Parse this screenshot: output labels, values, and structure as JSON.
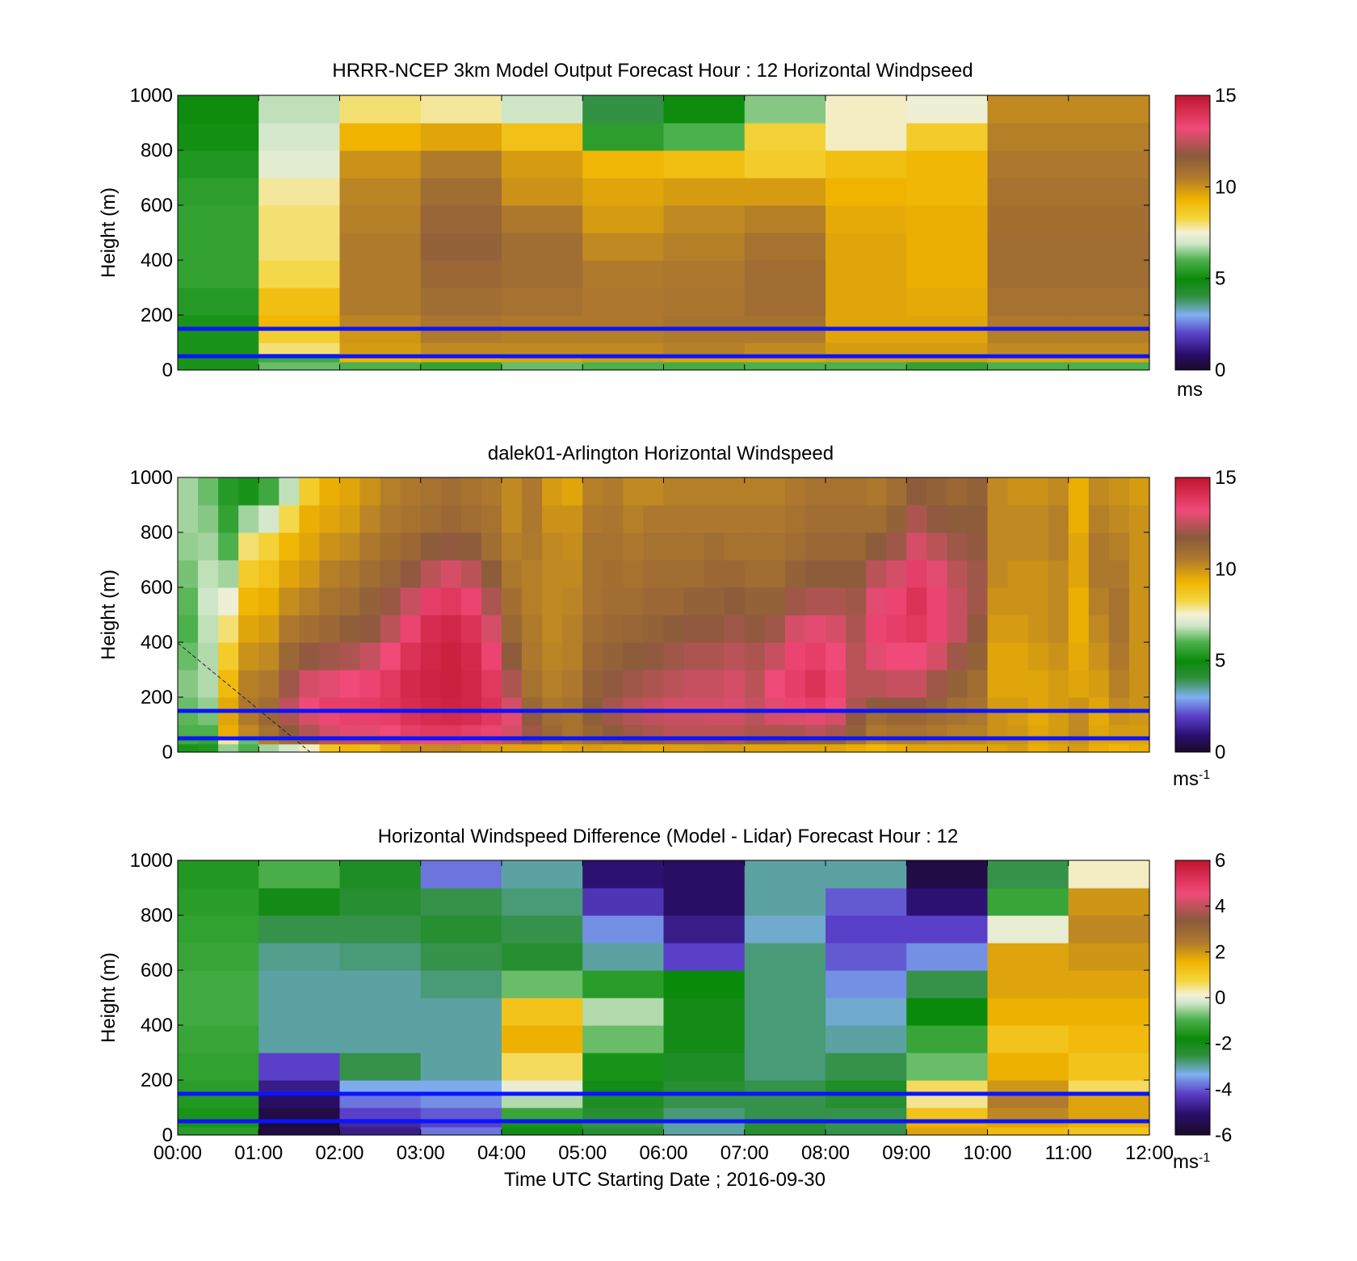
{
  "chart_data": [
    {
      "type": "heatmap",
      "title": "HRRR-NCEP 3km Model Output   Forecast Hour : 12 Horizontal Windpseed",
      "ylabel": "Height (m)",
      "xlabel": "",
      "ylim": [
        0,
        1000
      ],
      "yticks": [
        "0",
        "200",
        "400",
        "600",
        "800",
        "1000"
      ],
      "x_hours": [
        0,
        12
      ],
      "colorbar": {
        "ticks": [
          "0",
          "5",
          "10",
          "15"
        ],
        "range": [
          0,
          15
        ],
        "units": "ms",
        "units_sup": "",
        "colormap": "speed"
      },
      "reference_lines_m": [
        50,
        150
      ],
      "columns": 12,
      "height_levels_m": [
        30,
        60,
        100,
        150,
        200,
        300,
        400,
        500,
        600,
        700,
        800,
        900,
        1000
      ],
      "values": [
        [
          5.2,
          5.2,
          5.2,
          5.2,
          5.2,
          5.4,
          5.6,
          5.6,
          5.6,
          5.5,
          5.3,
          5.1,
          5.0
        ],
        [
          6.2,
          5.8,
          8.0,
          8.5,
          9.2,
          9.0,
          8.2,
          8.0,
          8.0,
          7.8,
          7.2,
          7.0,
          6.8
        ],
        [
          6.0,
          9.3,
          9.8,
          9.9,
          10.3,
          10.5,
          10.5,
          10.5,
          10.4,
          10.3,
          10.0,
          9.3,
          8.0
        ],
        [
          5.6,
          9.5,
          10.2,
          10.5,
          10.7,
          11.0,
          11.2,
          11.4,
          11.3,
          11.0,
          10.5,
          9.6,
          7.8
        ],
        [
          6.2,
          9.6,
          10.2,
          10.4,
          10.6,
          10.8,
          11.0,
          11.0,
          10.6,
          10.0,
          9.8,
          8.9,
          6.9
        ],
        [
          6.0,
          9.8,
          10.2,
          10.4,
          10.6,
          10.6,
          10.5,
          10.2,
          9.8,
          9.6,
          9.2,
          5.5,
          4.0
        ],
        [
          5.9,
          9.6,
          10.4,
          10.5,
          10.8,
          10.7,
          10.6,
          10.4,
          10.2,
          9.8,
          9.0,
          6.0,
          5.0
        ],
        [
          6.0,
          9.6,
          10.2,
          10.5,
          10.8,
          11.0,
          11.0,
          10.8,
          10.4,
          9.8,
          8.6,
          8.4,
          6.4
        ],
        [
          6.0,
          9.8,
          9.8,
          9.6,
          9.6,
          9.6,
          9.6,
          9.6,
          9.5,
          9.3,
          9.0,
          7.6,
          7.6
        ],
        [
          5.6,
          9.8,
          9.8,
          9.6,
          9.6,
          9.5,
          9.4,
          9.4,
          9.4,
          9.2,
          9.2,
          8.6,
          7.4
        ],
        [
          6.0,
          9.6,
          10.2,
          10.4,
          10.6,
          10.8,
          11.0,
          11.0,
          10.9,
          10.8,
          10.6,
          10.4,
          10.2
        ],
        [
          6.0,
          9.6,
          10.2,
          10.4,
          10.6,
          10.8,
          11.0,
          11.0,
          10.9,
          10.8,
          10.6,
          10.4,
          10.2
        ]
      ]
    },
    {
      "type": "heatmap",
      "title": "dalek01-Arlington  Horizontal Windspeed",
      "ylabel": "Height (m)",
      "xlabel": "",
      "ylim": [
        0,
        1000
      ],
      "yticks": [
        "0",
        "200",
        "400",
        "600",
        "800",
        "1000"
      ],
      "x_hours": [
        0,
        12
      ],
      "colorbar": {
        "ticks": [
          "0",
          "5",
          "10",
          "15"
        ],
        "range": [
          0,
          15
        ],
        "units": "ms",
        "units_sup": "-1",
        "colormap": "speed"
      },
      "reference_lines_m": [
        50,
        150
      ],
      "columns": 48,
      "height_levels_m": [
        30,
        60,
        100,
        150,
        200,
        300,
        400,
        500,
        600,
        700,
        800,
        900,
        1000
      ],
      "values": [
        [
          5.2,
          5.8,
          6.0,
          6.1,
          6.2,
          6.4,
          6.2,
          6.0,
          6.1,
          6.3,
          6.5,
          6.6,
          6.6
        ],
        [
          5.3,
          5.6,
          6.0,
          6.3,
          6.5,
          6.7,
          6.7,
          6.8,
          6.9,
          6.8,
          6.6,
          6.4,
          6.2
        ],
        [
          6.5,
          7.8,
          9.4,
          9.6,
          9.5,
          9.1,
          8.6,
          8.0,
          7.4,
          6.6,
          6.0,
          5.6,
          5.4
        ],
        [
          6.0,
          6.2,
          10.2,
          10.5,
          10.6,
          10.4,
          10.0,
          9.6,
          9.2,
          8.6,
          8.0,
          6.6,
          5.2
        ],
        [
          6.6,
          10.4,
          10.8,
          11.2,
          11.0,
          10.6,
          10.2,
          9.8,
          9.4,
          8.9,
          8.4,
          7.0,
          5.8
        ],
        [
          7.0,
          11.0,
          11.6,
          12.2,
          12.5,
          12.0,
          11.2,
          10.6,
          10.1,
          9.6,
          9.2,
          8.2,
          6.8
        ],
        [
          7.6,
          11.6,
          12.3,
          12.8,
          13.2,
          12.8,
          11.8,
          10.9,
          10.4,
          9.9,
          9.6,
          9.4,
          8.6
        ],
        [
          8.8,
          12.4,
          12.8,
          13.3,
          13.6,
          13.0,
          12.0,
          11.2,
          10.8,
          10.4,
          10.0,
          9.6,
          9.4
        ],
        [
          9.2,
          12.5,
          13.0,
          13.5,
          13.6,
          13.2,
          12.2,
          11.5,
          11.0,
          10.6,
          10.2,
          9.8,
          9.6
        ],
        [
          9.0,
          12.4,
          13.0,
          13.5,
          13.7,
          13.4,
          12.6,
          11.8,
          11.4,
          11.0,
          10.6,
          10.3,
          10.0
        ],
        [
          9.6,
          12.6,
          13.2,
          13.6,
          13.9,
          13.8,
          13.2,
          12.4,
          11.9,
          11.3,
          10.9,
          10.6,
          10.4
        ],
        [
          10.0,
          13.0,
          13.6,
          14.0,
          14.2,
          14.3,
          14.0,
          13.4,
          12.6,
          11.8,
          11.2,
          10.8,
          10.6
        ],
        [
          10.1,
          13.2,
          13.8,
          14.2,
          14.4,
          14.5,
          14.4,
          14.2,
          13.6,
          12.4,
          11.6,
          11.0,
          10.8
        ],
        [
          10.2,
          13.2,
          13.8,
          14.3,
          14.5,
          14.6,
          14.6,
          14.4,
          13.8,
          12.8,
          11.8,
          11.2,
          11.0
        ],
        [
          10.0,
          13.0,
          13.6,
          14.2,
          14.4,
          14.4,
          14.3,
          14.0,
          13.4,
          12.4,
          11.6,
          11.0,
          10.8
        ],
        [
          9.8,
          12.8,
          13.4,
          13.8,
          14.0,
          13.8,
          13.4,
          12.8,
          12.2,
          11.6,
          11.0,
          10.8,
          10.6
        ],
        [
          9.6,
          12.4,
          12.8,
          13.0,
          12.8,
          12.2,
          11.6,
          11.2,
          10.9,
          10.6,
          10.4,
          10.2,
          10.2
        ],
        [
          9.6,
          11.8,
          12.0,
          11.8,
          11.2,
          10.8,
          10.6,
          10.5,
          10.4,
          10.4,
          10.5,
          10.6,
          10.6
        ],
        [
          9.4,
          11.0,
          11.2,
          11.0,
          10.6,
          10.4,
          10.3,
          10.2,
          10.2,
          10.2,
          10.2,
          10.0,
          9.8
        ],
        [
          9.6,
          10.6,
          10.8,
          10.8,
          10.8,
          10.6,
          10.4,
          10.4,
          10.3,
          10.2,
          10.1,
          10.0,
          9.6
        ],
        [
          9.8,
          11.0,
          11.3,
          11.5,
          11.6,
          11.4,
          11.2,
          11.0,
          10.8,
          10.8,
          10.8,
          10.6,
          10.4
        ],
        [
          9.7,
          11.2,
          11.6,
          12.0,
          12.1,
          11.8,
          11.4,
          11.2,
          11.0,
          10.9,
          10.8,
          10.7,
          10.5
        ],
        [
          9.6,
          11.6,
          12.0,
          12.3,
          12.4,
          12.0,
          11.6,
          11.3,
          11.0,
          10.8,
          10.6,
          10.4,
          10.2
        ],
        [
          9.5,
          11.8,
          12.2,
          12.5,
          12.6,
          12.2,
          11.8,
          11.4,
          11.2,
          11.0,
          10.8,
          10.6,
          10.2
        ],
        [
          9.7,
          12.0,
          12.4,
          12.6,
          12.8,
          12.4,
          12.0,
          11.6,
          11.2,
          11.0,
          10.8,
          10.6,
          10.4
        ],
        [
          9.7,
          12.0,
          12.4,
          12.6,
          12.8,
          12.6,
          12.2,
          11.8,
          11.4,
          11.0,
          10.8,
          10.6,
          10.4
        ],
        [
          9.8,
          12.0,
          12.4,
          12.7,
          12.8,
          12.6,
          12.2,
          11.8,
          11.4,
          11.2,
          11.0,
          10.6,
          10.4
        ],
        [
          9.8,
          12.2,
          12.4,
          12.7,
          12.9,
          12.8,
          12.4,
          12.0,
          11.6,
          11.2,
          10.8,
          10.6,
          10.4
        ],
        [
          9.6,
          11.8,
          12.2,
          12.4,
          12.6,
          12.4,
          12.2,
          11.8,
          11.4,
          11.0,
          10.8,
          10.6,
          10.4
        ],
        [
          9.6,
          11.6,
          12.2,
          12.8,
          13.0,
          13.2,
          12.6,
          12.0,
          11.4,
          11.0,
          10.8,
          10.6,
          10.4
        ],
        [
          9.6,
          11.4,
          12.2,
          12.9,
          13.4,
          13.6,
          13.4,
          12.8,
          12.0,
          11.4,
          11.0,
          10.8,
          10.6
        ],
        [
          9.6,
          11.4,
          12.4,
          13.0,
          13.6,
          14.0,
          13.6,
          13.0,
          12.2,
          11.6,
          11.2,
          11.0,
          10.8
        ],
        [
          9.6,
          11.4,
          12.2,
          12.8,
          13.2,
          13.4,
          13.2,
          12.8,
          12.2,
          11.6,
          11.2,
          11.0,
          10.8
        ],
        [
          9.4,
          10.8,
          11.4,
          11.8,
          12.2,
          12.4,
          12.4,
          12.2,
          12.0,
          11.6,
          11.2,
          11.0,
          10.8
        ],
        [
          9.2,
          10.2,
          10.6,
          11.0,
          11.6,
          12.4,
          13.0,
          13.4,
          13.0,
          12.4,
          11.6,
          11.0,
          10.6
        ],
        [
          9.4,
          10.4,
          10.8,
          11.2,
          11.8,
          12.6,
          13.2,
          13.6,
          13.4,
          12.8,
          12.0,
          11.4,
          11.0
        ],
        [
          9.6,
          10.4,
          10.8,
          11.2,
          11.8,
          12.6,
          13.2,
          13.8,
          14.0,
          13.6,
          12.8,
          12.2,
          11.6
        ],
        [
          9.6,
          10.2,
          10.6,
          11.0,
          11.4,
          12.0,
          12.8,
          13.4,
          13.4,
          13.0,
          12.4,
          11.8,
          11.4
        ],
        [
          9.6,
          10.2,
          10.4,
          10.8,
          11.0,
          11.4,
          12.0,
          12.6,
          12.6,
          12.4,
          12.0,
          11.6,
          11.2
        ],
        [
          9.6,
          10.2,
          10.4,
          10.6,
          10.8,
          11.0,
          11.4,
          11.8,
          12.0,
          12.0,
          11.8,
          11.6,
          11.4
        ],
        [
          9.6,
          10.0,
          10.0,
          10.0,
          9.8,
          9.6,
          9.6,
          9.8,
          10.0,
          10.2,
          10.2,
          10.2,
          10.2
        ],
        [
          9.8,
          10.0,
          9.9,
          9.8,
          9.8,
          9.6,
          9.6,
          9.8,
          10.0,
          10.0,
          10.2,
          10.2,
          10.0
        ],
        [
          9.4,
          9.6,
          9.6,
          9.5,
          9.6,
          9.6,
          9.8,
          10.0,
          10.0,
          10.0,
          10.2,
          10.2,
          10.0
        ],
        [
          9.6,
          9.8,
          9.8,
          9.8,
          9.8,
          9.8,
          10.0,
          10.2,
          10.2,
          10.2,
          10.4,
          10.4,
          10.2
        ],
        [
          9.8,
          10.0,
          10.2,
          10.2,
          10.0,
          9.6,
          9.5,
          9.4,
          9.4,
          9.6,
          9.6,
          9.4,
          9.4
        ],
        [
          9.4,
          9.6,
          9.6,
          9.5,
          9.6,
          9.8,
          10.0,
          10.2,
          10.4,
          10.6,
          10.6,
          10.4,
          10.2
        ],
        [
          9.2,
          9.6,
          9.8,
          10.0,
          10.2,
          10.4,
          10.6,
          10.8,
          10.8,
          10.6,
          10.4,
          10.2,
          10.0
        ],
        [
          9.4,
          9.6,
          9.8,
          9.9,
          10.0,
          10.0,
          10.0,
          10.0,
          10.0,
          10.0,
          10.0,
          10.0,
          9.8
        ]
      ]
    },
    {
      "type": "heatmap",
      "title": "Horizontal Windspeed Difference (Model - Lidar) Forecast Hour : 12",
      "ylabel": "Height (m)",
      "xlabel": "Time UTC  Starting Date ; 2016-09-30",
      "ylim": [
        0,
        1000
      ],
      "yticks": [
        "0",
        "200",
        "400",
        "600",
        "800",
        "1000"
      ],
      "x_hours": [
        0,
        12
      ],
      "colorbar": {
        "ticks": [
          "-6",
          "-4",
          "-2",
          "0",
          "2",
          "4",
          "6"
        ],
        "range": [
          -6,
          6
        ],
        "units": "ms",
        "units_sup": "-1",
        "colormap": "diff"
      },
      "reference_lines_m": [
        50,
        150
      ],
      "columns": 12,
      "height_levels_m": [
        30,
        60,
        100,
        150,
        200,
        300,
        400,
        500,
        600,
        700,
        800,
        900,
        1000
      ],
      "values": [
        [
          -1.4,
          -1.6,
          -1.6,
          -1.5,
          -1.4,
          -1.3,
          -1.2,
          -1.1,
          -1.1,
          -1.2,
          -1.3,
          -1.4,
          -1.5
        ],
        [
          -5.6,
          -5.8,
          -5.6,
          -5.2,
          -4.8,
          -4.2,
          -3.0,
          -3.0,
          -3.0,
          -2.9,
          -2.6,
          -2.0,
          -1.0
        ],
        [
          -4.8,
          -4.6,
          -4.2,
          -3.8,
          -3.4,
          -2.6,
          -3.0,
          -3.0,
          -3.0,
          -2.8,
          -2.6,
          -2.4,
          -2.2
        ],
        [
          -3.8,
          -4.2,
          -4.0,
          -3.6,
          -3.4,
          -3.0,
          -3.0,
          -3.0,
          -2.8,
          -2.6,
          -2.4,
          -2.6,
          -3.8
        ],
        [
          -2.0,
          -1.6,
          -1.2,
          -0.4,
          0.0,
          0.6,
          1.6,
          1.2,
          -0.8,
          -2.4,
          -2.6,
          -2.8,
          -3.0
        ],
        [
          -2.4,
          -2.6,
          -2.4,
          -2.2,
          -2.0,
          -1.6,
          -0.8,
          -0.4,
          -1.4,
          -3.0,
          -3.6,
          -4.4,
          -5.0
        ],
        [
          -3.0,
          -3.0,
          -2.8,
          -2.6,
          -2.4,
          -2.2,
          -2.0,
          -2.0,
          -1.8,
          -4.2,
          -4.8,
          -5.2,
          -5.2
        ],
        [
          -2.4,
          -2.4,
          -2.6,
          -2.6,
          -2.6,
          -2.8,
          -2.8,
          -2.8,
          -2.8,
          -2.8,
          -3.2,
          -3.0,
          -3.0
        ],
        [
          -2.6,
          -2.6,
          -2.6,
          -2.4,
          -2.2,
          -2.6,
          -3.0,
          -3.2,
          -3.6,
          -4.0,
          -4.2,
          -4.0,
          -3.0
        ],
        [
          1.8,
          1.6,
          1.2,
          0.4,
          0.6,
          -0.8,
          -1.2,
          -1.8,
          -2.6,
          -3.6,
          -4.2,
          -5.0,
          -5.6
        ],
        [
          1.4,
          1.8,
          2.2,
          2.4,
          2.0,
          1.6,
          1.2,
          1.6,
          1.8,
          1.8,
          0.0,
          -1.2,
          -2.6
        ],
        [
          1.2,
          1.6,
          1.8,
          1.8,
          0.6,
          1.2,
          1.4,
          1.6,
          1.8,
          2.0,
          2.2,
          2.0,
          0.2
        ]
      ]
    }
  ]
}
